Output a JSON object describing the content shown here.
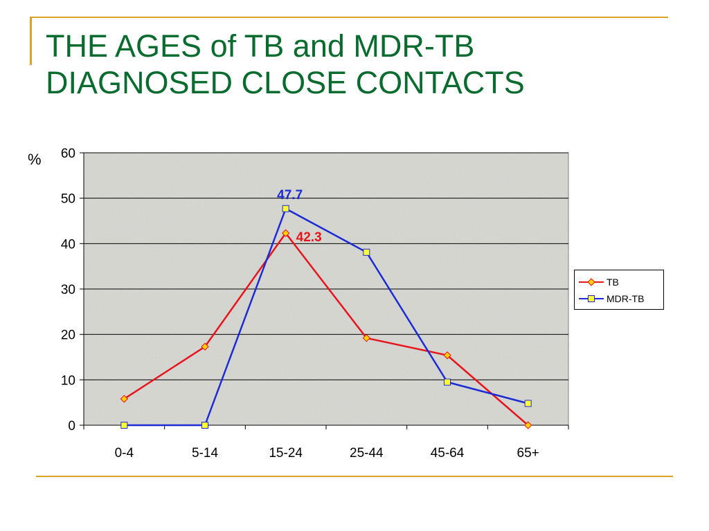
{
  "slide": {
    "title_line1": "THE AGES of TB and MDR-TB",
    "title_line2": "DIAGNOSED CLOSE CONTACTS"
  },
  "colors": {
    "title": "#0a6b2e",
    "accent": "#d9a520",
    "tb": "#e8141b",
    "mdr_tb": "#1c2bd4",
    "marker_tb": "#ffd000",
    "marker_mdr": "#ffff33",
    "plot_bg": "#dcdcd8"
  },
  "chart_data": {
    "type": "line",
    "categories": [
      "0-4",
      "5-14",
      "15-24",
      "25-44",
      "45-64",
      "65+"
    ],
    "series": [
      {
        "name": "TB",
        "values": [
          5.8,
          17.3,
          42.3,
          19.2,
          15.4,
          0
        ],
        "marker": "diamond",
        "color": "#e8141b"
      },
      {
        "name": "MDR-TB",
        "values": [
          0,
          0,
          47.7,
          38.1,
          9.5,
          4.8
        ],
        "marker": "square",
        "color": "#1c2bd4"
      }
    ],
    "ylabel": "%",
    "ylim": [
      0,
      60
    ],
    "yticks": [
      0,
      10,
      20,
      30,
      40,
      50,
      60
    ],
    "grid": true,
    "legend": "right",
    "annotations": [
      {
        "series": "MDR-TB",
        "category": "15-24",
        "text": "47.7"
      },
      {
        "series": "TB",
        "category": "15-24",
        "text": "42.3"
      }
    ]
  }
}
